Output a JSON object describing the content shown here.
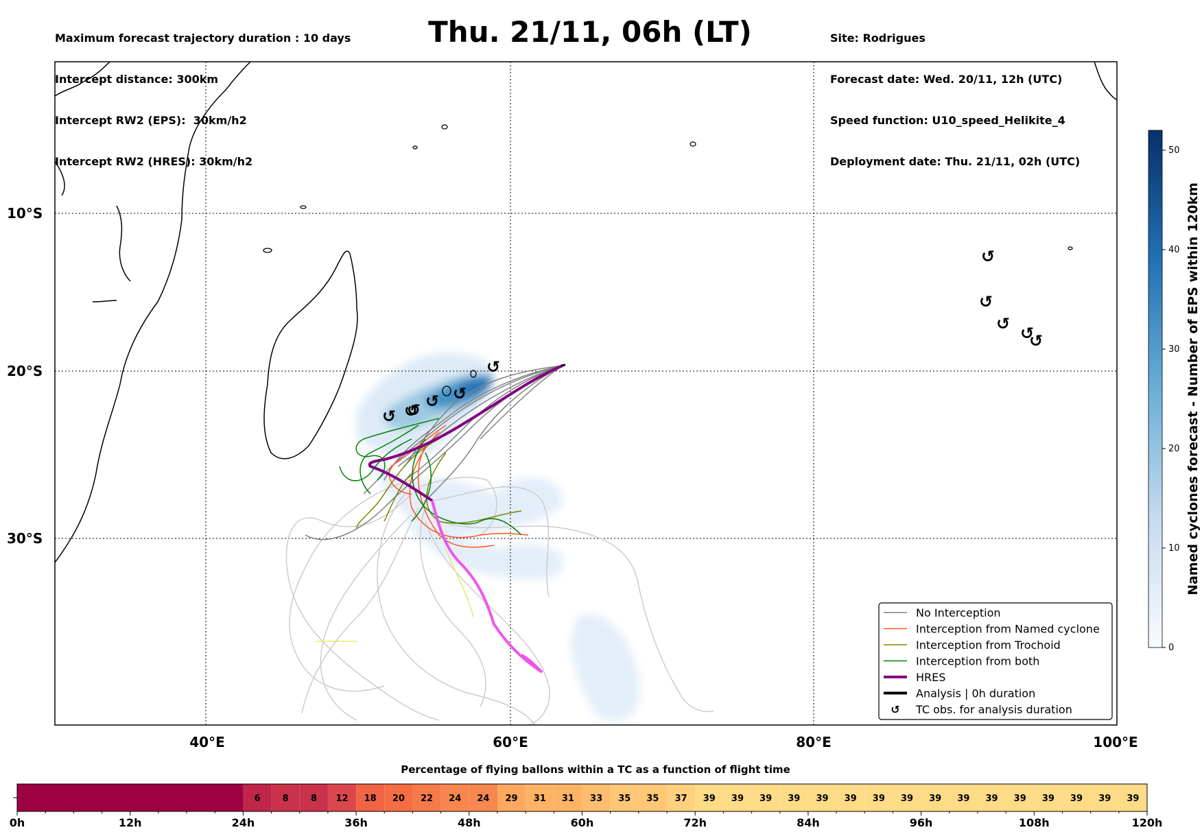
{
  "header": {
    "left": [
      "Maximum forecast trajectory duration : 10 days",
      "Intercept distance: 300km",
      "Intercept RW2 (EPS):  30km/h2",
      "Intercept RW2 (HRES): 30km/h2"
    ],
    "title": "Thu. 21/11, 06h (LT)",
    "right": [
      "Site: Rodrigues",
      "Forecast date: Wed. 20/11, 12h (UTC)",
      "Speed function: U10_speed_Helikite_4",
      "Deployment date: Thu. 21/11, 02h (UTC)"
    ]
  },
  "map": {
    "lon_labels": [
      "40°E",
      "60°E",
      "80°E",
      "100°E"
    ],
    "lat_labels": [
      "10°S",
      "20°S",
      "30°S"
    ]
  },
  "colorbar": {
    "label": "Named cyclones forecast - Number of EPS within 120km",
    "ticks": [
      "0",
      "10",
      "20",
      "30",
      "40",
      "50"
    ],
    "max": 52
  },
  "legend": {
    "items": [
      {
        "label": "No Interception",
        "color": "#808080",
        "kind": "line"
      },
      {
        "label": "Interception from Named cyclone",
        "color": "#ff5722",
        "kind": "line"
      },
      {
        "label": "Interception from Trochoid",
        "color": "#808000",
        "kind": "line"
      },
      {
        "label": "Interception from both",
        "color": "#008000",
        "kind": "line"
      },
      {
        "label": "HRES",
        "color": "#800080",
        "kind": "thick"
      },
      {
        "label": "Analysis | 0h duration",
        "color": "#000000",
        "kind": "thick"
      },
      {
        "label": "TC obs. for analysis duration",
        "color": "#000000",
        "kind": "tc"
      }
    ]
  },
  "tc_symbol": "↺",
  "chart_data": {
    "type": "heatmap",
    "title": "Percentage of flying ballons within a TC as a function of flight time",
    "x_unit": "h",
    "xlim": [
      0,
      120
    ],
    "x_ticks": [
      "0h",
      "12h",
      "24h",
      "36h",
      "48h",
      "60h",
      "72h",
      "84h",
      "96h",
      "108h",
      "120h"
    ],
    "bin_hours": 3,
    "values_from_24h": [
      6,
      8,
      8,
      12,
      18,
      20,
      22,
      24,
      24,
      29,
      31,
      31,
      33,
      35,
      35,
      37,
      39,
      39,
      39,
      39,
      39,
      39,
      39,
      39,
      39,
      39,
      39,
      39,
      39,
      39,
      39,
      39
    ]
  }
}
